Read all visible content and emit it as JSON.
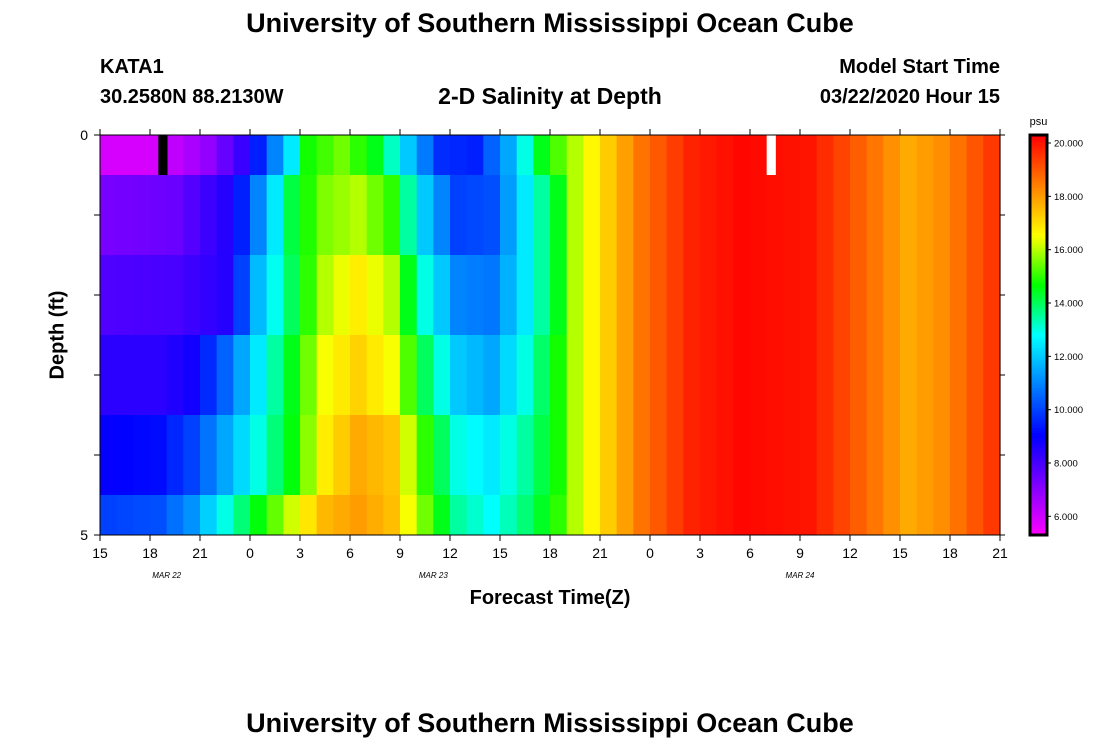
{
  "page": {
    "title_top": "University of Southern Mississippi Ocean Cube",
    "title_bottom": "University of Southern Mississippi Ocean Cube",
    "station_id": "KATA1",
    "station_coords": "30.2580N 88.2130W",
    "plot_title": "2-D Salinity at Depth",
    "model_label": "Model Start Time",
    "model_time": "03/22/2020 Hour 15"
  },
  "chart_data": {
    "type": "heatmap",
    "title": "2-D Salinity at Depth",
    "xlabel": "Forecast Time(Z)",
    "ylabel": "Depth (ft)",
    "y_range": [
      0,
      5
    ],
    "y_tick_labels": [
      "0",
      "5"
    ],
    "x_tick_labels": [
      "15",
      "18",
      "21",
      "0",
      "3",
      "6",
      "9",
      "12",
      "15",
      "18",
      "21",
      "0",
      "3",
      "6",
      "9",
      "12",
      "15",
      "18",
      "21"
    ],
    "date_labels": [
      {
        "label": "MAR  22",
        "hour_index": 4
      },
      {
        "label": "MAR  23",
        "hour_index": 20
      },
      {
        "label": "MAR  24",
        "hour_index": 42
      }
    ],
    "forecast_hours": 54,
    "depth_layer_edges_ft": [
      0,
      0.5,
      1.5,
      2.5,
      3.5,
      4.5,
      5
    ],
    "colorbar": {
      "unit": "psu",
      "min": 5.3,
      "max": 20.3,
      "tick_values": [
        6,
        8,
        10,
        12,
        14,
        16,
        18,
        20
      ],
      "tick_labels": [
        "6.000",
        "8.000",
        "10.000",
        "12.000",
        "14.000",
        "16.000",
        "18.000",
        "20.000"
      ],
      "colors": [
        "#ff00ff",
        "#8000ff",
        "#0000ff",
        "#0080ff",
        "#00ffff",
        "#00ff00",
        "#ffff00",
        "#ff8000",
        "#ff0000"
      ]
    },
    "missing_cells": [
      {
        "hour": 3.5,
        "layer": 0,
        "color": "#000000"
      },
      {
        "hour": 40,
        "layer": 0,
        "color": "#ffffff"
      }
    ],
    "profiles": [
      {
        "layer": 0,
        "points": [
          [
            0,
            5.9
          ],
          [
            3,
            5.9
          ],
          [
            6,
            6.9
          ],
          [
            8,
            8.2
          ],
          [
            9,
            9.5
          ],
          [
            11,
            12.5
          ],
          [
            12,
            14.8
          ],
          [
            14,
            15.5
          ],
          [
            16,
            14.5
          ],
          [
            18,
            12.0
          ],
          [
            20,
            9.7
          ],
          [
            22,
            9.5
          ],
          [
            24,
            11.5
          ],
          [
            26,
            14.5
          ],
          [
            28,
            16.0
          ],
          [
            30,
            17.3
          ],
          [
            32,
            18.6
          ],
          [
            35,
            19.8
          ],
          [
            38,
            20.2
          ],
          [
            42,
            20.0
          ],
          [
            44,
            19.3
          ],
          [
            48,
            17.8
          ],
          [
            50,
            18.2
          ],
          [
            53,
            19.5
          ]
        ]
      },
      {
        "layer": 1,
        "points": [
          [
            0,
            7.3
          ],
          [
            4,
            7.5
          ],
          [
            7,
            8.5
          ],
          [
            8,
            9.5
          ],
          [
            9,
            11.0
          ],
          [
            10,
            12.5
          ],
          [
            11,
            14.2
          ],
          [
            13,
            15.6
          ],
          [
            15,
            16.0
          ],
          [
            17,
            15.0
          ],
          [
            19,
            12.0
          ],
          [
            21,
            10.0
          ],
          [
            23,
            10.2
          ],
          [
            25,
            12.5
          ],
          [
            27,
            14.5
          ],
          [
            28,
            16.0
          ],
          [
            30,
            17.3
          ],
          [
            32,
            18.6
          ],
          [
            35,
            19.8
          ],
          [
            38,
            20.2
          ],
          [
            42,
            20.0
          ],
          [
            44,
            19.3
          ],
          [
            48,
            17.8
          ],
          [
            50,
            18.2
          ],
          [
            53,
            19.5
          ]
        ]
      },
      {
        "layer": 2,
        "points": [
          [
            0,
            7.9
          ],
          [
            4,
            8.0
          ],
          [
            7,
            8.5
          ],
          [
            8,
            10.0
          ],
          [
            9,
            11.8
          ],
          [
            11,
            14.0
          ],
          [
            13,
            16.0
          ],
          [
            15,
            16.8
          ],
          [
            17,
            16.0
          ],
          [
            19,
            13.0
          ],
          [
            21,
            11.0
          ],
          [
            23,
            10.8
          ],
          [
            25,
            12.5
          ],
          [
            27,
            14.5
          ],
          [
            28,
            16.0
          ],
          [
            30,
            17.3
          ],
          [
            32,
            18.6
          ],
          [
            35,
            19.8
          ],
          [
            38,
            20.2
          ],
          [
            42,
            20.0
          ],
          [
            44,
            19.3
          ],
          [
            48,
            17.8
          ],
          [
            50,
            18.2
          ],
          [
            53,
            19.5
          ]
        ]
      },
      {
        "layer": 3,
        "points": [
          [
            0,
            8.4
          ],
          [
            3,
            8.4
          ],
          [
            5,
            8.8
          ],
          [
            7,
            10.5
          ],
          [
            9,
            12.5
          ],
          [
            11,
            14.5
          ],
          [
            13,
            16.5
          ],
          [
            15,
            17.2
          ],
          [
            17,
            16.5
          ],
          [
            19,
            14.0
          ],
          [
            21,
            12.0
          ],
          [
            23,
            11.5
          ],
          [
            25,
            13.0
          ],
          [
            27,
            14.8
          ],
          [
            28,
            16.0
          ],
          [
            30,
            17.3
          ],
          [
            32,
            18.6
          ],
          [
            35,
            19.8
          ],
          [
            38,
            20.2
          ],
          [
            42,
            20.0
          ],
          [
            44,
            19.3
          ],
          [
            48,
            17.8
          ],
          [
            50,
            18.2
          ],
          [
            53,
            19.5
          ]
        ]
      },
      {
        "layer": 4,
        "points": [
          [
            0,
            9.0
          ],
          [
            3,
            9.2
          ],
          [
            5,
            10.0
          ],
          [
            7,
            11.5
          ],
          [
            9,
            13.0
          ],
          [
            11,
            14.6
          ],
          [
            13,
            16.8
          ],
          [
            15,
            17.8
          ],
          [
            17,
            17.4
          ],
          [
            19,
            15.0
          ],
          [
            21,
            13.0
          ],
          [
            23,
            12.5
          ],
          [
            25,
            13.5
          ],
          [
            27,
            14.8
          ],
          [
            28,
            16.0
          ],
          [
            30,
            17.3
          ],
          [
            32,
            18.6
          ],
          [
            35,
            19.8
          ],
          [
            38,
            20.2
          ],
          [
            42,
            20.0
          ],
          [
            44,
            19.3
          ],
          [
            48,
            17.8
          ],
          [
            50,
            18.2
          ],
          [
            53,
            19.5
          ]
        ]
      },
      {
        "layer": 5,
        "points": [
          [
            0,
            10.0
          ],
          [
            3,
            10.2
          ],
          [
            5,
            11.2
          ],
          [
            7,
            13.0
          ],
          [
            9,
            14.6
          ],
          [
            11,
            16.2
          ],
          [
            13,
            17.6
          ],
          [
            15,
            18.0
          ],
          [
            17,
            17.5
          ],
          [
            19,
            15.5
          ],
          [
            21,
            13.5
          ],
          [
            23,
            12.8
          ],
          [
            25,
            13.8
          ],
          [
            27,
            15.0
          ],
          [
            28,
            16.0
          ],
          [
            30,
            17.3
          ],
          [
            32,
            18.6
          ],
          [
            35,
            19.8
          ],
          [
            38,
            20.2
          ],
          [
            42,
            20.0
          ],
          [
            44,
            19.3
          ],
          [
            48,
            17.8
          ],
          [
            50,
            18.2
          ],
          [
            53,
            19.5
          ]
        ]
      }
    ]
  }
}
